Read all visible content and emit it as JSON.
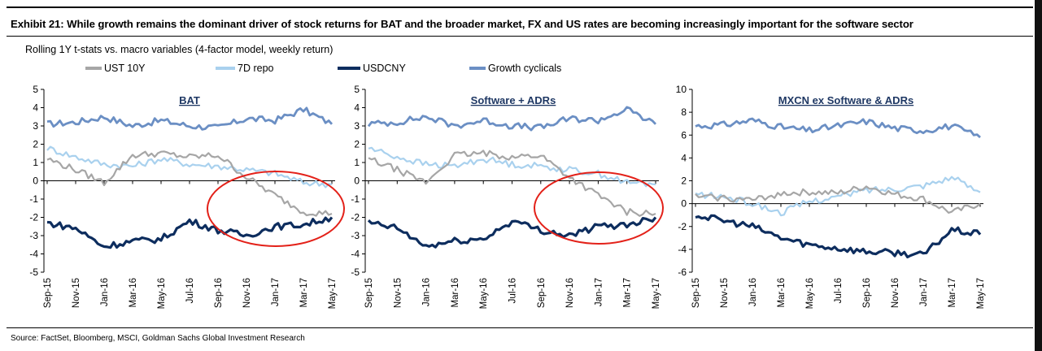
{
  "header": {
    "title": "Exhibit 21: While growth remains the dominant driver of stock returns for BAT and the broader market, FX and US rates are becoming increasingly important for the software sector",
    "subtitle": "Rolling 1Y t-stats vs. macro variables (4-factor model, weekly return)"
  },
  "legend": [
    {
      "name": "UST 10Y",
      "color": "#a6a6a6"
    },
    {
      "name": "7D repo",
      "color": "#a9d1ee"
    },
    {
      "name": "USDCNY",
      "color": "#0d2d5e"
    },
    {
      "name": "Growth cyclicals",
      "color": "#6b8fc4"
    }
  ],
  "source": "Source: FactSet, Bloomberg, MSCI, Goldman Sachs Global Investment Research",
  "chart_data": [
    {
      "type": "line",
      "title": "BAT",
      "x": [
        "Sep-15",
        "Nov-15",
        "Jan-16",
        "Mar-16",
        "May-16",
        "Jul-16",
        "Sep-16",
        "Nov-16",
        "Jan-17",
        "Mar-17",
        "May-17"
      ],
      "ylim": [
        -5,
        5
      ],
      "yticks": [
        "5",
        "4",
        "3",
        "2",
        "1",
        "0",
        "-1",
        "-2",
        "-3",
        "-4",
        "-5"
      ],
      "series": [
        {
          "name": "Growth cyclicals",
          "values": [
            3.1,
            3.2,
            3.5,
            3.0,
            3.3,
            3.0,
            2.9,
            3.4,
            3.3,
            3.9,
            3.1
          ]
        },
        {
          "name": "7D repo",
          "values": [
            1.8,
            1.3,
            0.9,
            0.8,
            1.2,
            0.9,
            0.8,
            0.6,
            0.4,
            -0.1,
            -0.2
          ]
        },
        {
          "name": "UST 10Y",
          "values": [
            1.2,
            0.6,
            -0.1,
            1.4,
            1.5,
            1.3,
            1.4,
            0.2,
            -0.8,
            -1.7,
            -1.8
          ]
        },
        {
          "name": "USDCNY",
          "values": [
            -2.3,
            -2.6,
            -3.6,
            -3.3,
            -3.2,
            -2.2,
            -2.7,
            -3.0,
            -2.5,
            -2.4,
            -2.0
          ]
        }
      ],
      "annotation": "red circle highlighting Nov-16 to May-17"
    },
    {
      "type": "line",
      "title": "Software + ADRs",
      "x": [
        "Sep-15",
        "Nov-15",
        "Jan-16",
        "Mar-16",
        "May-16",
        "Jul-16",
        "Sep-16",
        "Nov-16",
        "Jan-17",
        "Mar-17",
        "May-17"
      ],
      "ylim": [
        -5,
        5
      ],
      "yticks": [
        "5",
        "4",
        "3",
        "2",
        "1",
        "0",
        "-1",
        "-2",
        "-3",
        "-4",
        "-5"
      ],
      "series": [
        {
          "name": "Growth cyclicals",
          "values": [
            3.1,
            3.2,
            3.5,
            3.0,
            3.3,
            3.0,
            2.9,
            3.4,
            3.3,
            3.9,
            3.1
          ]
        },
        {
          "name": "7D repo",
          "values": [
            1.8,
            1.3,
            0.9,
            0.8,
            1.2,
            0.9,
            0.8,
            0.6,
            0.4,
            -0.1,
            -0.2
          ]
        },
        {
          "name": "UST 10Y",
          "values": [
            1.2,
            0.6,
            -0.1,
            1.4,
            1.5,
            1.3,
            1.4,
            0.2,
            -0.8,
            -1.7,
            -1.8
          ]
        },
        {
          "name": "USDCNY",
          "values": [
            -2.3,
            -2.6,
            -3.6,
            -3.3,
            -3.2,
            -2.2,
            -2.7,
            -3.0,
            -2.5,
            -2.4,
            -2.0
          ]
        }
      ],
      "annotation": "red circle highlighting Nov-16 to May-17"
    },
    {
      "type": "line",
      "title": "MXCN ex Software & ADRs",
      "x": [
        "Sep-15",
        "Nov-15",
        "Jan-16",
        "Mar-16",
        "May-16",
        "Jul-16",
        "Sep-16",
        "Nov-16",
        "Jan-17",
        "Mar-17",
        "May-17"
      ],
      "ylim": [
        -6,
        10
      ],
      "yticks": [
        "10",
        "8",
        "6",
        "4",
        "2",
        "0",
        "-2",
        "-4",
        "-6"
      ],
      "series": [
        {
          "name": "Growth cyclicals",
          "values": [
            6.8,
            6.9,
            7.3,
            6.7,
            6.4,
            6.8,
            7.2,
            6.6,
            6.4,
            6.8,
            5.8
          ]
        },
        {
          "name": "7D repo",
          "values": [
            0.8,
            0.6,
            0.0,
            -0.8,
            0.2,
            0.6,
            1.2,
            1.3,
            1.6,
            2.3,
            1.0
          ]
        },
        {
          "name": "UST 10Y",
          "values": [
            0.6,
            0.5,
            0.3,
            0.9,
            1.0,
            0.9,
            1.5,
            0.8,
            0.4,
            -0.8,
            0.0
          ]
        },
        {
          "name": "USDCNY",
          "values": [
            -1.0,
            -1.5,
            -2.0,
            -3.0,
            -3.6,
            -3.9,
            -4.2,
            -4.3,
            -4.5,
            -2.3,
            -2.7
          ]
        }
      ]
    }
  ]
}
